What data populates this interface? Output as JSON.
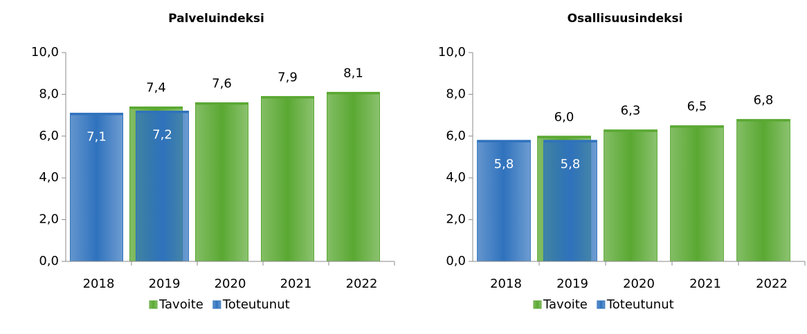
{
  "chart_data": [
    {
      "type": "bar",
      "title": "Palveluindeksi",
      "categories": [
        "2018",
        "2019",
        "2020",
        "2021",
        "2022"
      ],
      "series": [
        {
          "name": "Tavoite",
          "color": "#5aa832",
          "values": [
            null,
            7.4,
            7.6,
            7.9,
            8.1
          ],
          "value_labels": [
            null,
            "7,4",
            "7,6",
            "7,9",
            "8,1"
          ]
        },
        {
          "name": "Toteutunut",
          "color": "#2f72bd",
          "values": [
            7.1,
            7.2,
            null,
            null,
            null
          ],
          "value_labels": [
            "7,1",
            "7,2",
            null,
            null,
            null
          ]
        }
      ],
      "ylim": [
        0,
        10
      ],
      "yticks": [
        {
          "value": 0,
          "label": "0,0"
        },
        {
          "value": 2,
          "label": "2,0"
        },
        {
          "value": 4,
          "label": "4,0"
        },
        {
          "value": 6,
          "label": "6,0"
        },
        {
          "value": 8,
          "label": "8,0"
        },
        {
          "value": 10,
          "label": "10,0"
        }
      ],
      "legend": "bottom"
    },
    {
      "type": "bar",
      "title": "Osallisuusindeksi",
      "categories": [
        "2018",
        "2019",
        "2020",
        "2021",
        "2022"
      ],
      "series": [
        {
          "name": "Tavoite",
          "color": "#5aa832",
          "values": [
            null,
            6.0,
            6.3,
            6.5,
            6.8
          ],
          "value_labels": [
            null,
            "6,0",
            "6,3",
            "6,5",
            "6,8"
          ]
        },
        {
          "name": "Toteutunut",
          "color": "#2f72bd",
          "values": [
            5.8,
            5.8,
            null,
            null,
            null
          ],
          "value_labels": [
            "5,8",
            "5,8",
            null,
            null,
            null
          ]
        }
      ],
      "ylim": [
        0,
        10
      ],
      "yticks": [
        {
          "value": 0,
          "label": "0,0"
        },
        {
          "value": 2,
          "label": "2,0"
        },
        {
          "value": 4,
          "label": "4,0"
        },
        {
          "value": 6,
          "label": "6,0"
        },
        {
          "value": 8,
          "label": "8,0"
        },
        {
          "value": 10,
          "label": "10,0"
        }
      ],
      "legend": "bottom"
    }
  ]
}
